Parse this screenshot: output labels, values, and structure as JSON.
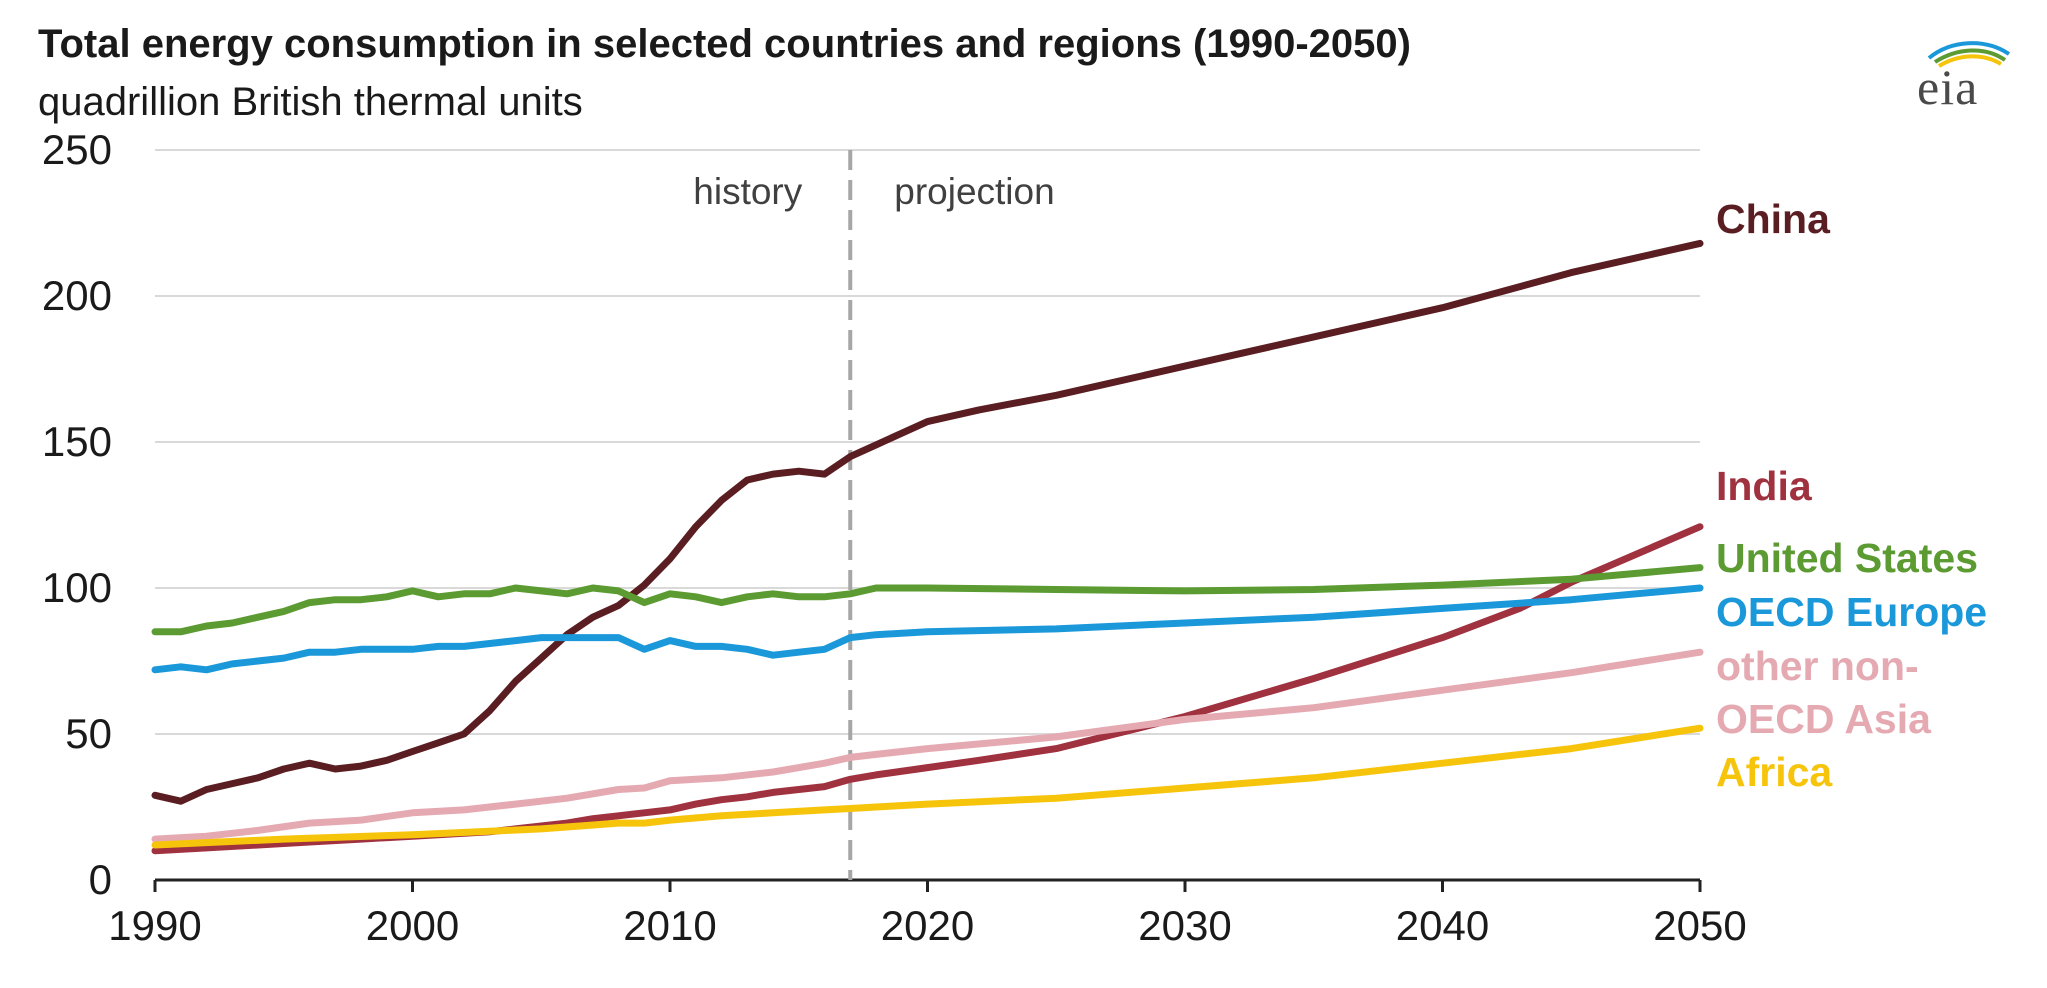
{
  "chart_data": {
    "type": "line",
    "title": "Total energy consumption in selected countries and regions (1990-2050)",
    "subtitle": "quadrillion British thermal units",
    "xlabel": "",
    "ylabel": "",
    "xlim": [
      1990,
      2050
    ],
    "ylim": [
      0,
      250
    ],
    "x_ticks": [
      1990,
      2000,
      2010,
      2020,
      2030,
      2040,
      2050
    ],
    "y_ticks": [
      0,
      50,
      100,
      150,
      200,
      250
    ],
    "grid": "horizontal",
    "legend": "right, labels at line ends",
    "divider": {
      "x": 2017,
      "left_label": "history",
      "right_label": "projection"
    },
    "series": [
      {
        "name": "China",
        "color": "#5a1e22",
        "points": [
          [
            1990,
            29
          ],
          [
            1991,
            27
          ],
          [
            1992,
            31
          ],
          [
            1993,
            33
          ],
          [
            1994,
            35
          ],
          [
            1995,
            38
          ],
          [
            1996,
            40
          ],
          [
            1997,
            38
          ],
          [
            1998,
            39
          ],
          [
            1999,
            41
          ],
          [
            2000,
            44
          ],
          [
            2001,
            47
          ],
          [
            2002,
            50
          ],
          [
            2003,
            58
          ],
          [
            2004,
            68
          ],
          [
            2005,
            76
          ],
          [
            2006,
            84
          ],
          [
            2007,
            90
          ],
          [
            2008,
            94
          ],
          [
            2009,
            101
          ],
          [
            2010,
            110
          ],
          [
            2011,
            121
          ],
          [
            2012,
            130
          ],
          [
            2013,
            137
          ],
          [
            2014,
            139
          ],
          [
            2015,
            140
          ],
          [
            2016,
            139
          ],
          [
            2017,
            145
          ],
          [
            2018,
            149
          ],
          [
            2019,
            153
          ],
          [
            2020,
            157
          ],
          [
            2022,
            161
          ],
          [
            2025,
            166
          ],
          [
            2030,
            176
          ],
          [
            2035,
            186
          ],
          [
            2040,
            196
          ],
          [
            2045,
            208
          ],
          [
            2050,
            218
          ]
        ]
      },
      {
        "name": "India",
        "color": "#a0313f",
        "points": [
          [
            1990,
            10
          ],
          [
            1992,
            11
          ],
          [
            1994,
            12
          ],
          [
            1996,
            13
          ],
          [
            1998,
            14
          ],
          [
            2000,
            15
          ],
          [
            2002,
            16
          ],
          [
            2003,
            16.5
          ],
          [
            2004,
            17.5
          ],
          [
            2005,
            18.5
          ],
          [
            2006,
            19.5
          ],
          [
            2007,
            21
          ],
          [
            2008,
            22
          ],
          [
            2009,
            23
          ],
          [
            2010,
            24
          ],
          [
            2011,
            26
          ],
          [
            2012,
            27.5
          ],
          [
            2013,
            28.5
          ],
          [
            2014,
            30
          ],
          [
            2015,
            31
          ],
          [
            2016,
            32
          ],
          [
            2017,
            34.5
          ],
          [
            2018,
            36
          ],
          [
            2020,
            38.5
          ],
          [
            2022,
            41
          ],
          [
            2025,
            45
          ],
          [
            2030,
            56
          ],
          [
            2035,
            69
          ],
          [
            2040,
            83
          ],
          [
            2043,
            93
          ],
          [
            2045,
            102
          ],
          [
            2050,
            121
          ]
        ]
      },
      {
        "name": "United States",
        "color": "#5b9b32",
        "points": [
          [
            1990,
            85
          ],
          [
            1991,
            85
          ],
          [
            1992,
            87
          ],
          [
            1993,
            88
          ],
          [
            1994,
            90
          ],
          [
            1995,
            92
          ],
          [
            1996,
            95
          ],
          [
            1997,
            96
          ],
          [
            1998,
            96
          ],
          [
            1999,
            97
          ],
          [
            2000,
            99
          ],
          [
            2001,
            97
          ],
          [
            2002,
            98
          ],
          [
            2003,
            98
          ],
          [
            2004,
            100
          ],
          [
            2005,
            99
          ],
          [
            2006,
            98
          ],
          [
            2007,
            100
          ],
          [
            2008,
            99
          ],
          [
            2009,
            95
          ],
          [
            2010,
            98
          ],
          [
            2011,
            97
          ],
          [
            2012,
            95
          ],
          [
            2013,
            97
          ],
          [
            2014,
            98
          ],
          [
            2015,
            97
          ],
          [
            2016,
            97
          ],
          [
            2017,
            98
          ],
          [
            2018,
            100
          ],
          [
            2020,
            100
          ],
          [
            2025,
            99.5
          ],
          [
            2030,
            99
          ],
          [
            2035,
            99.5
          ],
          [
            2040,
            101
          ],
          [
            2045,
            103
          ],
          [
            2050,
            107
          ]
        ]
      },
      {
        "name": "OECD Europe",
        "color": "#1b98d9",
        "points": [
          [
            1990,
            72
          ],
          [
            1991,
            73
          ],
          [
            1992,
            72
          ],
          [
            1993,
            74
          ],
          [
            1994,
            75
          ],
          [
            1995,
            76
          ],
          [
            1996,
            78
          ],
          [
            1997,
            78
          ],
          [
            1998,
            79
          ],
          [
            1999,
            79
          ],
          [
            2000,
            79
          ],
          [
            2001,
            80
          ],
          [
            2002,
            80
          ],
          [
            2003,
            81
          ],
          [
            2004,
            82
          ],
          [
            2005,
            83
          ],
          [
            2006,
            83
          ],
          [
            2007,
            83
          ],
          [
            2008,
            83
          ],
          [
            2009,
            79
          ],
          [
            2010,
            82
          ],
          [
            2011,
            80
          ],
          [
            2012,
            80
          ],
          [
            2013,
            79
          ],
          [
            2014,
            77
          ],
          [
            2015,
            78
          ],
          [
            2016,
            79
          ],
          [
            2017,
            83
          ],
          [
            2018,
            84
          ],
          [
            2020,
            85
          ],
          [
            2025,
            86
          ],
          [
            2030,
            88
          ],
          [
            2035,
            90
          ],
          [
            2040,
            93
          ],
          [
            2045,
            96
          ],
          [
            2050,
            100
          ]
        ]
      },
      {
        "name": "other non-OECD Asia",
        "color": "#e5a9b2",
        "points": [
          [
            1990,
            14
          ],
          [
            1992,
            15
          ],
          [
            1994,
            17
          ],
          [
            1996,
            19.5
          ],
          [
            1998,
            20.5
          ],
          [
            2000,
            23
          ],
          [
            2002,
            24
          ],
          [
            2004,
            26
          ],
          [
            2006,
            28
          ],
          [
            2008,
            31
          ],
          [
            2009,
            31.5
          ],
          [
            2010,
            34
          ],
          [
            2012,
            35
          ],
          [
            2014,
            37
          ],
          [
            2016,
            40
          ],
          [
            2017,
            42
          ],
          [
            2018,
            43
          ],
          [
            2020,
            45
          ],
          [
            2025,
            49
          ],
          [
            2030,
            55
          ],
          [
            2035,
            59
          ],
          [
            2040,
            65
          ],
          [
            2045,
            71
          ],
          [
            2050,
            78
          ]
        ]
      },
      {
        "name": "Africa",
        "color": "#f7c40c",
        "points": [
          [
            1990,
            12
          ],
          [
            1995,
            14
          ],
          [
            2000,
            15.5
          ],
          [
            2005,
            17.5
          ],
          [
            2008,
            19.5
          ],
          [
            2009,
            19.5
          ],
          [
            2010,
            20.5
          ],
          [
            2012,
            22
          ],
          [
            2014,
            23
          ],
          [
            2016,
            24
          ],
          [
            2017,
            24.5
          ],
          [
            2018,
            25
          ],
          [
            2020,
            26
          ],
          [
            2025,
            28
          ],
          [
            2030,
            31.5
          ],
          [
            2035,
            35
          ],
          [
            2040,
            40
          ],
          [
            2045,
            45
          ],
          [
            2050,
            52
          ]
        ]
      }
    ]
  }
}
